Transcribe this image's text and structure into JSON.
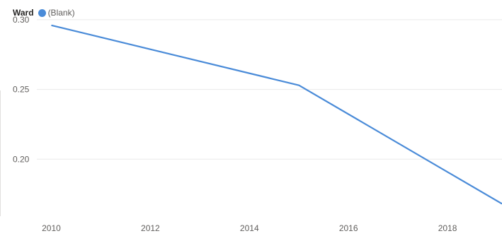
{
  "legend": {
    "title": "Ward",
    "items": [
      {
        "label": "(Blank)",
        "color": "#4a8bd8"
      }
    ]
  },
  "chart_data": {
    "type": "line",
    "title": "",
    "xlabel": "",
    "ylabel": "",
    "xlim": [
      2009.85,
      2019.1
    ],
    "ylim": [
      0.153,
      0.303
    ],
    "x_ticks": [
      "2010",
      "2012",
      "2014",
      "2016",
      "2018"
    ],
    "y_ticks": [
      "0.30",
      "0.25",
      "0.20"
    ],
    "grid": true,
    "legend_position": "top-left",
    "series": [
      {
        "name": "(Blank)",
        "color": "#4a8bd8",
        "x": [
          2010,
          2015,
          2019.1
        ],
        "y": [
          0.296,
          0.253,
          0.168
        ]
      }
    ]
  }
}
